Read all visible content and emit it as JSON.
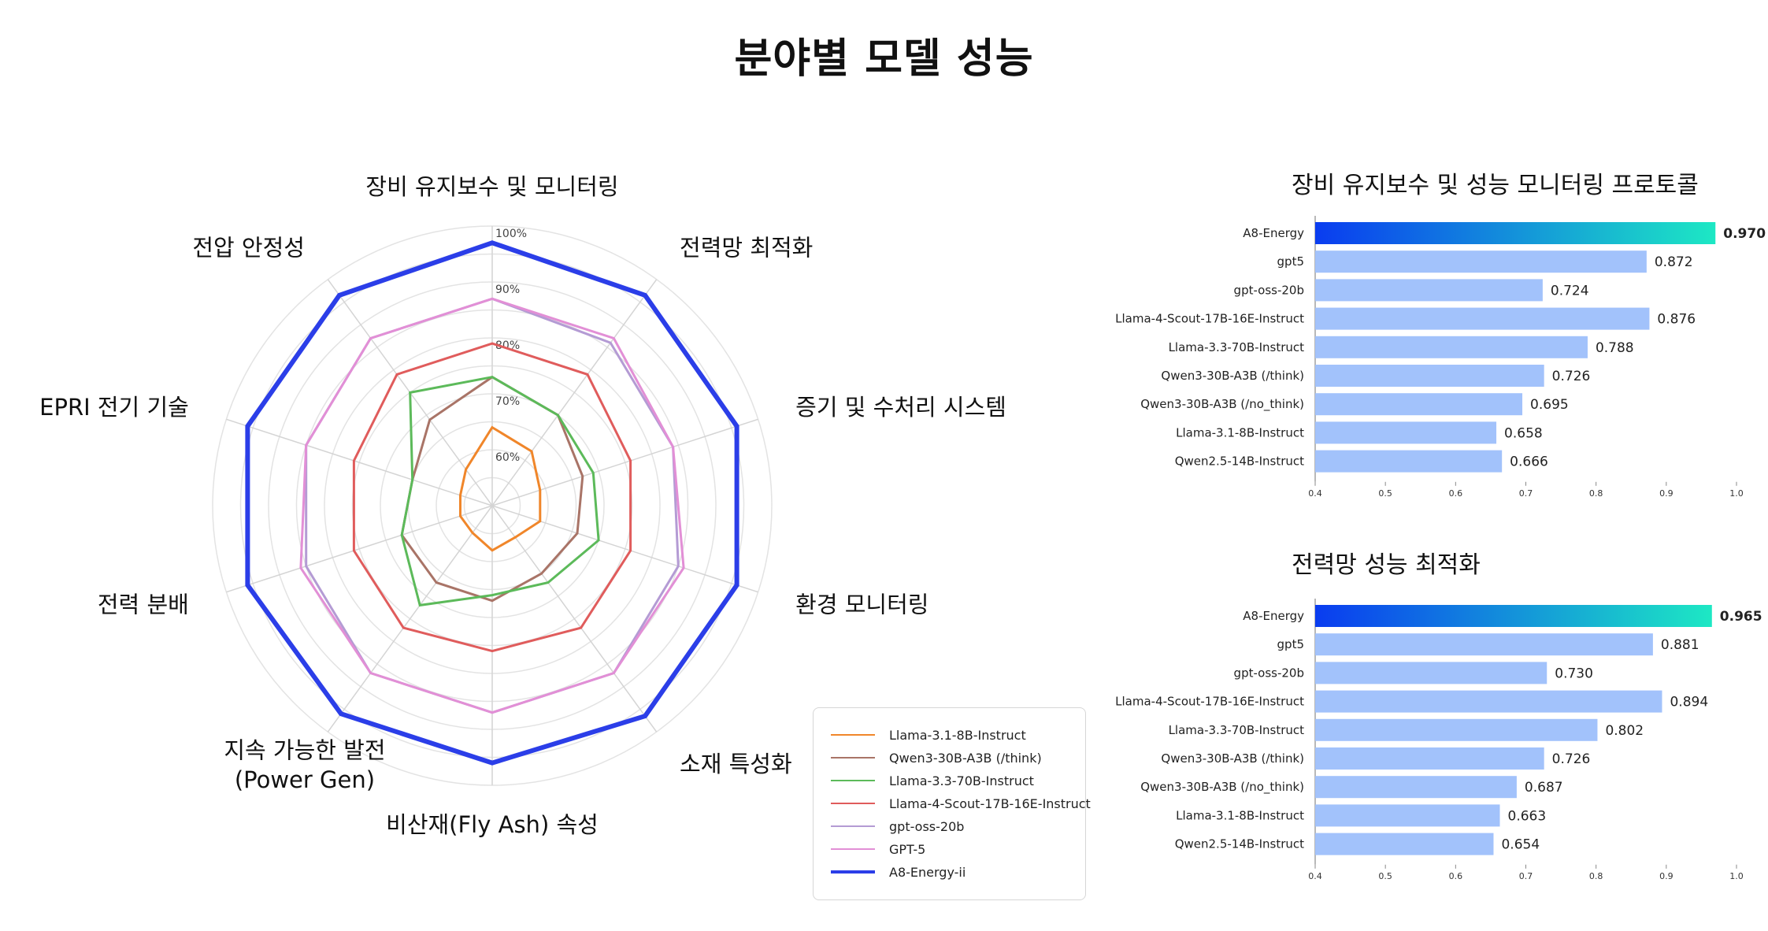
{
  "title": "분야별 모델 성능",
  "chart_data": [
    {
      "type": "radar",
      "categories": [
        "장비 유지보수 및 모니터링",
        "전력망 최적화",
        "증기 및 수처리 시스템",
        "환경 모니터링",
        "소재 특성화",
        "비산재(Fly Ash) 속성",
        "지속 가능한 발전\n(Power Gen)",
        "전력 분배",
        "EPRI 전기 기술",
        "전압 안정성"
      ],
      "range": [
        0.5,
        1.0
      ],
      "tick_labels": [
        "60%",
        "70%",
        "80%",
        "90%",
        "100%"
      ],
      "ticks": [
        0.6,
        0.7,
        0.8,
        0.9,
        1.0
      ],
      "grid": true,
      "legend_position": "bottom-right",
      "series": [
        {
          "name": "Llama-3.1-8B-Instruct",
          "color": "#f0862a",
          "values": [
            0.64,
            0.62,
            0.59,
            0.59,
            0.57,
            0.58,
            0.56,
            0.56,
            0.56,
            0.58
          ]
        },
        {
          "name": "Qwen3-30B-A3B (/think)",
          "color": "#a97467",
          "values": [
            0.73,
            0.7,
            0.67,
            0.66,
            0.65,
            0.67,
            0.67,
            0.67,
            0.65,
            0.69
          ]
        },
        {
          "name": "Llama-3.3-70B-Instruct",
          "color": "#5cba5a",
          "values": [
            0.73,
            0.7,
            0.69,
            0.7,
            0.67,
            0.66,
            0.72,
            0.67,
            0.65,
            0.75
          ]
        },
        {
          "name": "Llama-4-Scout-17B-16E-Instruct",
          "color": "#e05c5c",
          "values": [
            0.79,
            0.79,
            0.76,
            0.76,
            0.77,
            0.76,
            0.77,
            0.76,
            0.76,
            0.79
          ]
        },
        {
          "name": "gpt-oss-20b",
          "color": "#b49bd4",
          "values": [
            0.87,
            0.86,
            0.84,
            0.85,
            0.87,
            0.87,
            0.87,
            0.85,
            0.85,
            0.87
          ]
        },
        {
          "name": "GPT-5",
          "color": "#e28fd6",
          "values": [
            0.87,
            0.87,
            0.84,
            0.86,
            0.87,
            0.87,
            0.87,
            0.86,
            0.85,
            0.87
          ]
        },
        {
          "name": "A8-Energy-ii",
          "color": "#2b3ee8",
          "values": [
            0.97,
            0.965,
            0.96,
            0.96,
            0.965,
            0.96,
            0.96,
            0.96,
            0.96,
            0.965
          ]
        }
      ]
    },
    {
      "type": "bar",
      "orientation": "horizontal",
      "title": "장비 유지보수 및 성능 모니터링 프로토콜",
      "categories": [
        "A8-Energy",
        "gpt5",
        "gpt-oss-20b",
        "Llama-4-Scout-17B-16E-Instruct",
        "Llama-3.3-70B-Instruct",
        "Qwen3-30B-A3B (/think)",
        "Qwen3-30B-A3B (/no_think)",
        "Llama-3.1-8B-Instruct",
        "Qwen2.5-14B-Instruct"
      ],
      "values": [
        0.97,
        0.872,
        0.724,
        0.876,
        0.788,
        0.726,
        0.695,
        0.658,
        0.666
      ],
      "value_labels": [
        "0.970",
        "0.872",
        "0.724",
        "0.876",
        "0.788",
        "0.726",
        "0.695",
        "0.658",
        "0.666"
      ],
      "xlim": [
        0.4,
        1.0
      ],
      "xticks": [
        "0.4",
        "0.5",
        "0.6",
        "0.7",
        "0.8",
        "0.9",
        "1.0"
      ],
      "highlight": "A8-Energy",
      "highlight_gradient": [
        "#0a3cf0",
        "#1de8c4"
      ],
      "bar_color": "#a2c2fb"
    },
    {
      "type": "bar",
      "orientation": "horizontal",
      "title": "전력망 성능 최적화",
      "categories": [
        "A8-Energy",
        "gpt5",
        "gpt-oss-20b",
        "Llama-4-Scout-17B-16E-Instruct",
        "Llama-3.3-70B-Instruct",
        "Qwen3-30B-A3B (/think)",
        "Qwen3-30B-A3B (/no_think)",
        "Llama-3.1-8B-Instruct",
        "Qwen2.5-14B-Instruct"
      ],
      "values": [
        0.965,
        0.881,
        0.73,
        0.894,
        0.802,
        0.726,
        0.687,
        0.663,
        0.654
      ],
      "value_labels": [
        "0.965",
        "0.881",
        "0.730",
        "0.894",
        "0.802",
        "0.726",
        "0.687",
        "0.663",
        "0.654"
      ],
      "xlim": [
        0.4,
        1.0
      ],
      "xticks": [
        "0.4",
        "0.5",
        "0.6",
        "0.7",
        "0.8",
        "0.9",
        "1.0"
      ],
      "highlight": "A8-Energy",
      "highlight_gradient": [
        "#0a3cf0",
        "#1de8c4"
      ],
      "bar_color": "#a2c2fb"
    }
  ]
}
